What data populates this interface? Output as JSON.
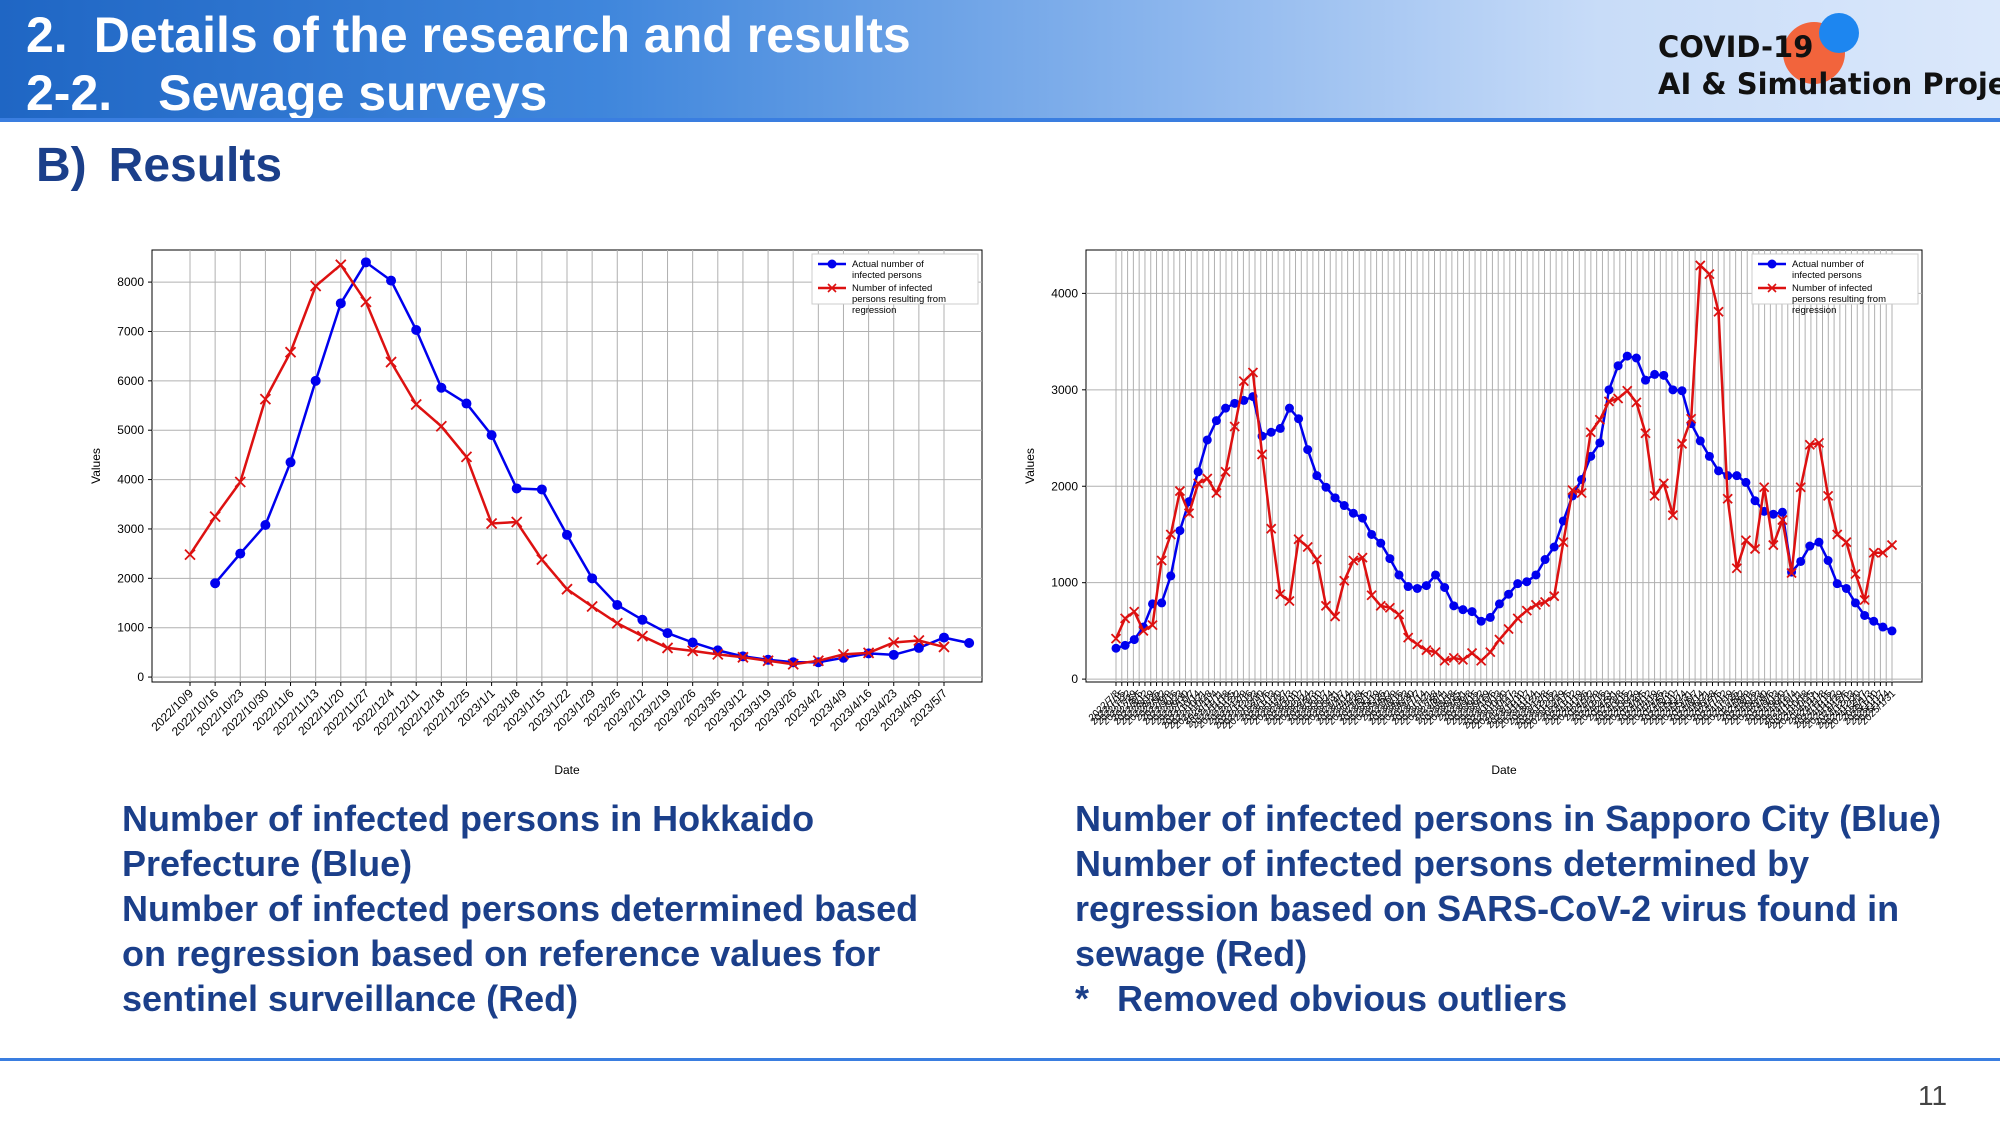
{
  "header": {
    "line1_num": "2.",
    "line1_text": "Details of the research and results",
    "line2_num": "2-2.",
    "line2_text": "Sewage surveys",
    "logo_line1": "COVID-19",
    "logo_line2": "AI & Simulation Project"
  },
  "section": {
    "marker": "B)",
    "title": "Results"
  },
  "chart_data": [
    {
      "type": "line",
      "xlabel": "Date",
      "ylabel": "Values",
      "ylim": [
        -100,
        8650
      ],
      "yticks": [
        0,
        1000,
        2000,
        3000,
        4000,
        5000,
        6000,
        7000,
        8000
      ],
      "grid": true,
      "legend_position": "top-right",
      "categories": [
        "2022/10/9",
        "2022/10/16",
        "2022/10/23",
        "2022/10/30",
        "2022/11/6",
        "2022/11/13",
        "2022/11/20",
        "2022/11/27",
        "2022/12/4",
        "2022/12/11",
        "2022/12/18",
        "2022/12/25",
        "2023/1/1",
        "2023/1/8",
        "2023/1/15",
        "2023/1/22",
        "2023/1/29",
        "2023/2/5",
        "2023/2/12",
        "2023/2/19",
        "2023/2/26",
        "2023/3/5",
        "2023/3/12",
        "2023/3/19",
        "2023/3/26",
        "2023/4/2",
        "2023/4/9",
        "2023/4/16",
        "2023/4/23",
        "2023/4/30",
        "2023/5/7"
      ],
      "series": [
        {
          "name": "Actual number of infected persons",
          "color": "#0000ee",
          "marker": "circle",
          "offset": 1,
          "values": [
            1900,
            2500,
            3080,
            4350,
            6000,
            7570,
            8400,
            8030,
            7030,
            5860,
            5540,
            4900,
            3820,
            3800,
            2880,
            2000,
            1460,
            1160,
            890,
            700,
            540,
            420,
            350,
            300,
            300,
            390,
            480,
            450,
            590,
            800,
            690
          ]
        },
        {
          "name": "Number of infected persons resulting from regression",
          "color": "#dd1111",
          "marker": "x",
          "offset": 0,
          "values": [
            2480,
            3250,
            3950,
            5630,
            6580,
            7920,
            8350,
            7600,
            6380,
            5520,
            5080,
            4460,
            3110,
            3140,
            2380,
            1780,
            1430,
            1090,
            830,
            590,
            530,
            460,
            400,
            330,
            260,
            330,
            460,
            490,
            700,
            740,
            610
          ]
        }
      ]
    },
    {
      "type": "line",
      "xlabel": "Date",
      "ylabel": "Values",
      "ylim": [
        -30,
        4450
      ],
      "yticks": [
        0,
        1000,
        2000,
        3000,
        4000
      ],
      "grid": true,
      "legend_position": "top-right",
      "x_tick_labels": [
        "2022/7/8",
        "2022/7/15",
        "2022/7/22",
        "2022/7/29",
        "2022/8/5",
        "2022/8/12",
        "2022/8/19",
        "2022/8/26",
        "2022/9/2",
        "2022/9/9",
        "2022/9/16",
        "2022/9/23",
        "2022/9/30",
        "2022/10/7",
        "2022/10/14",
        "2022/10/21",
        "2022/10/28",
        "2022/11/4",
        "2022/11/11",
        "2022/11/18",
        "2022/11/25",
        "2022/12/2",
        "2022/12/9",
        "2022/12/16",
        "2022/12/23",
        "2022/12/30",
        "2023/1/6",
        "2023/1/13",
        "2023/1/20",
        "2023/1/27",
        "2023/2/3",
        "2023/2/10",
        "2023/2/17",
        "2023/2/24",
        "2023/3/3",
        "2023/3/10",
        "2023/3/17",
        "2023/3/24",
        "2023/3/31",
        "2023/4/7",
        "2023/4/14",
        "2023/4/21",
        "2023/4/28",
        "2023/5/5",
        "2023/5/12",
        "2023/5/19",
        "2023/5/26",
        "2023/6/2",
        "2023/6/9",
        "2023/6/16",
        "2023/6/23",
        "2023/6/30",
        "2023/7/7",
        "2023/7/14",
        "2023/7/21",
        "2023/7/28",
        "2023/8/4",
        "2023/8/11",
        "2023/8/18",
        "2023/8/25",
        "2023/9/1",
        "2023/9/8",
        "2023/9/15",
        "2023/9/22",
        "2023/9/29",
        "2023/10/6",
        "2023/10/13",
        "2023/10/20",
        "2023/10/27",
        "2023/11/3",
        "2023/11/10",
        "2023/11/17",
        "2023/11/24",
        "2023/12/1",
        "2023/12/8",
        "2023/12/15",
        "2023/12/22",
        "2023/12/29",
        "2024/1/5",
        "2024/1/12",
        "2024/1/19",
        "2024/1/26",
        "2024/2/2",
        "2024/2/9",
        "2024/2/16",
        "2024/2/23",
        "2024/3/1",
        "2024/3/8",
        "2024/3/15",
        "2024/3/22",
        "2024/3/29",
        "2024/4/5",
        "2024/4/12",
        "2024/4/19",
        "2024/4/26",
        "2024/5/3",
        "2024/5/10",
        "2024/5/17",
        "2024/5/24",
        "2024/5/31",
        "2024/6/7",
        "2024/6/14",
        "2024/6/21",
        "2024/6/28",
        "2024/7/5",
        "2024/7/12",
        "2024/7/19",
        "2024/7/26",
        "2024/8/2",
        "2024/8/9",
        "2024/8/16",
        "2024/8/23",
        "2024/8/30",
        "2024/9/6",
        "2024/9/13",
        "2024/9/20",
        "2024/9/27",
        "2024/10/4",
        "2024/10/11",
        "2024/10/18",
        "2024/10/25",
        "2024/11/1",
        "2024/11/8",
        "2024/11/15",
        "2024/11/22",
        "2024/11/29",
        "2024/12/6",
        "2024/12/13",
        "2024/12/20",
        "2024/12/27",
        "2025/1/3",
        "2025/1/10",
        "2025/1/17",
        "2025/1/24",
        "2025/1/31"
      ],
      "series": [
        {
          "name": "Actual number of infected persons",
          "color": "#0000ee",
          "marker": "circle",
          "values": [
            320,
            350,
            410,
            540,
            780,
            790,
            1070,
            1540,
            1840,
            2150,
            2480,
            2680,
            2810,
            2860,
            2890,
            2930,
            2520,
            2560,
            2600,
            2810,
            2700,
            2380,
            2110,
            1990,
            1880,
            1800,
            1720,
            1670,
            1500,
            1410,
            1250,
            1080,
            960,
            940,
            970,
            1080,
            950,
            760,
            720,
            700,
            600,
            640,
            780,
            880,
            990,
            1010,
            1080,
            1240,
            1370,
            1640,
            1900,
            2070,
            2310,
            2450,
            3000,
            3250,
            3350,
            3330,
            3100,
            3160,
            3150,
            3000,
            2990,
            2650,
            2470,
            2310,
            2160,
            2110,
            2110,
            2040,
            1850,
            1740,
            1710,
            1730,
            1110,
            1220,
            1380,
            1420,
            1230,
            990,
            940,
            790,
            660,
            600,
            540,
            500
          ]
        },
        {
          "name": "Number of infected persons resulting from regression",
          "color": "#dd1111",
          "marker": "x",
          "values": [
            420,
            630,
            700,
            500,
            560,
            1230,
            1500,
            1950,
            1720,
            2030,
            2080,
            1930,
            2150,
            2620,
            3090,
            3180,
            2330,
            1560,
            880,
            810,
            1450,
            1370,
            1240,
            760,
            650,
            1020,
            1230,
            1260,
            870,
            760,
            740,
            670,
            430,
            360,
            300,
            280,
            190,
            220,
            200,
            270,
            190,
            280,
            410,
            520,
            630,
            710,
            770,
            800,
            860,
            1420,
            1960,
            1930,
            2560,
            2690,
            2880,
            2910,
            2990,
            2870,
            2550,
            1900,
            2030,
            1700,
            2440,
            2700,
            4290,
            4200,
            3810,
            1870,
            1150,
            1440,
            1350,
            1990,
            1390,
            1650,
            1100,
            1990,
            2430,
            2450,
            1900,
            1500,
            1420,
            1090,
            820,
            1310,
            1310,
            1390
          ]
        }
      ]
    }
  ],
  "captions": {
    "left": [
      "Number of infected persons in Hokkaido",
      "Prefecture (Blue)",
      "Number of infected persons determined based",
      "on regression based on reference values for",
      "sentinel surveillance (Red)"
    ],
    "right": [
      "Number of infected persons in Sapporo City (Blue)",
      "Number of infected persons determined by",
      "regression based on SARS-CoV-2 virus found in",
      "sewage (Red)"
    ],
    "right_note_marker": "*",
    "right_note": "Removed obvious outliers"
  },
  "legend": {
    "actual": "Actual number of infected persons",
    "regression": "Number of infected persons resulting from regression"
  },
  "page_number": "11"
}
